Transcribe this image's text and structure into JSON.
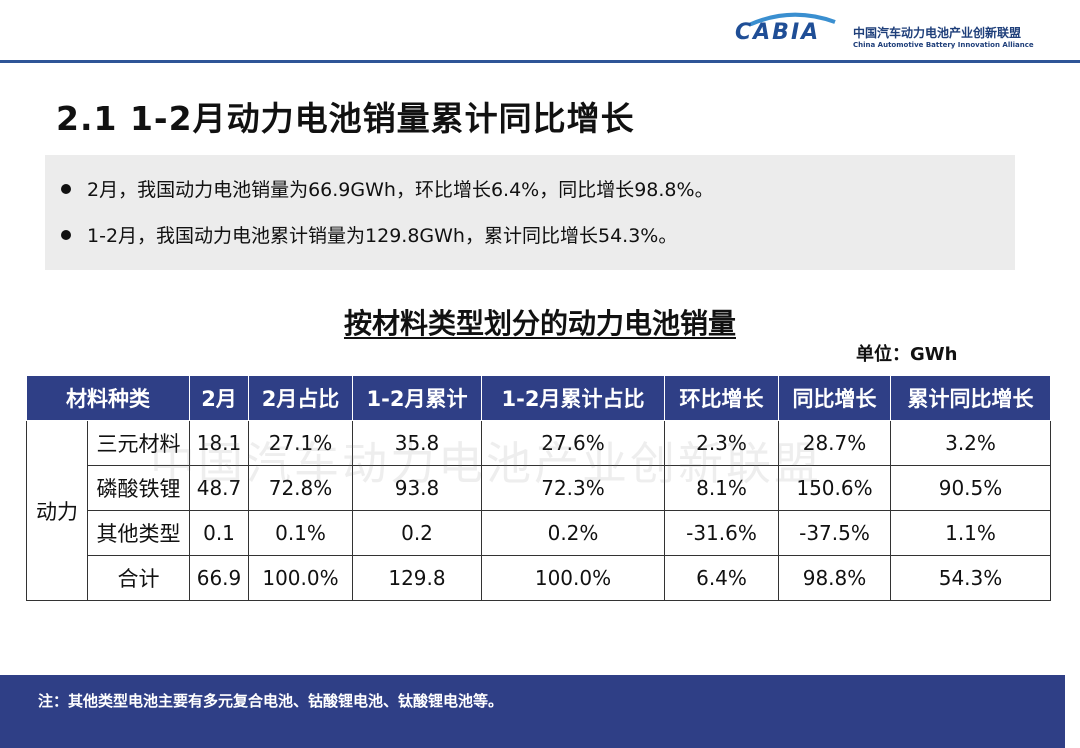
{
  "header": {
    "logo_text": "CABIA",
    "org_name_cn": "中国汽车动力电池产业创新联盟",
    "org_name_en": "China Automotive Battery Innovation Alliance"
  },
  "page_title": "2.1 1-2月动力电池销量累计同比增长",
  "summary": {
    "bullets": [
      "2月，我国动力电池销量为66.9GWh，环比增长6.4%，同比增长98.8%。",
      "1-2月，我国动力电池累计销量为129.8GWh，累计同比增长54.3%。"
    ]
  },
  "table": {
    "title": "按材料类型划分的动力电池销量",
    "unit": "单位：GWh",
    "headers": [
      "材料种类",
      "2月",
      "2月占比",
      "1-2月累计",
      "1-2月累计占比",
      "环比增长",
      "同比增长",
      "累计同比增长"
    ],
    "group_label": "动力",
    "rows": [
      {
        "type": "三元材料",
        "feb": "18.1",
        "feb_share": "27.1%",
        "ytd": "35.8",
        "ytd_share": "27.6%",
        "mom": "2.3%",
        "yoy": "28.7%",
        "ytd_yoy": "3.2%"
      },
      {
        "type": "磷酸铁锂",
        "feb": "48.7",
        "feb_share": "72.8%",
        "ytd": "93.8",
        "ytd_share": "72.3%",
        "mom": "8.1%",
        "yoy": "150.6%",
        "ytd_yoy": "90.5%"
      },
      {
        "type": "其他类型",
        "feb": "0.1",
        "feb_share": "0.1%",
        "ytd": "0.2",
        "ytd_share": "0.2%",
        "mom": "-31.6%",
        "yoy": "-37.5%",
        "ytd_yoy": "1.1%"
      },
      {
        "type": "合计",
        "feb": "66.9",
        "feb_share": "100.0%",
        "ytd": "129.8",
        "ytd_share": "100.0%",
        "mom": "6.4%",
        "yoy": "98.8%",
        "ytd_yoy": "54.3%"
      }
    ]
  },
  "watermark": "中国汽车动力电池产业创新联盟",
  "footer_note": "注：其他类型电池主要有多元复合电池、钴酸锂电池、钛酸锂电池等。",
  "colors": {
    "brand_blue": "#2f3f86",
    "header_line": "#2f5597",
    "summary_bg": "#ececec"
  }
}
